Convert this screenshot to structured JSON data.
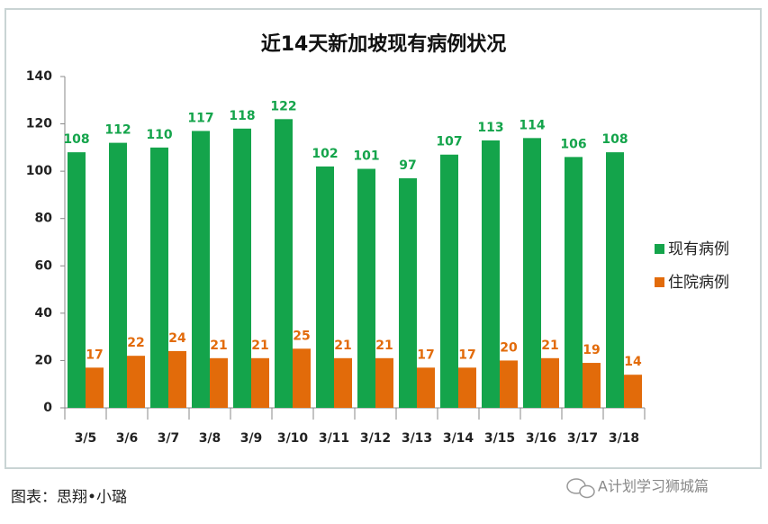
{
  "chart_data": {
    "type": "bar",
    "title": "近14天新加坡现有病例状况",
    "categories": [
      "3/5",
      "3/6",
      "3/7",
      "3/8",
      "3/9",
      "3/10",
      "3/11",
      "3/12",
      "3/13",
      "3/14",
      "3/15",
      "3/16",
      "3/17",
      "3/18"
    ],
    "series": [
      {
        "name": "现有病例",
        "color": "#14a44b",
        "values": [
          108,
          112,
          110,
          117,
          118,
          122,
          102,
          101,
          97,
          107,
          113,
          114,
          106,
          108
        ]
      },
      {
        "name": "住院病例",
        "color": "#e26b0a",
        "values": [
          17,
          22,
          24,
          21,
          21,
          25,
          21,
          21,
          17,
          17,
          20,
          21,
          19,
          14
        ]
      }
    ],
    "ylim": [
      0,
      140
    ],
    "yticks": [
      0,
      20,
      40,
      60,
      80,
      100,
      120,
      140
    ],
    "grid": false,
    "legend": "right"
  },
  "caption": "图表：思翔•小璐",
  "watermark": "A计划学习狮城篇"
}
